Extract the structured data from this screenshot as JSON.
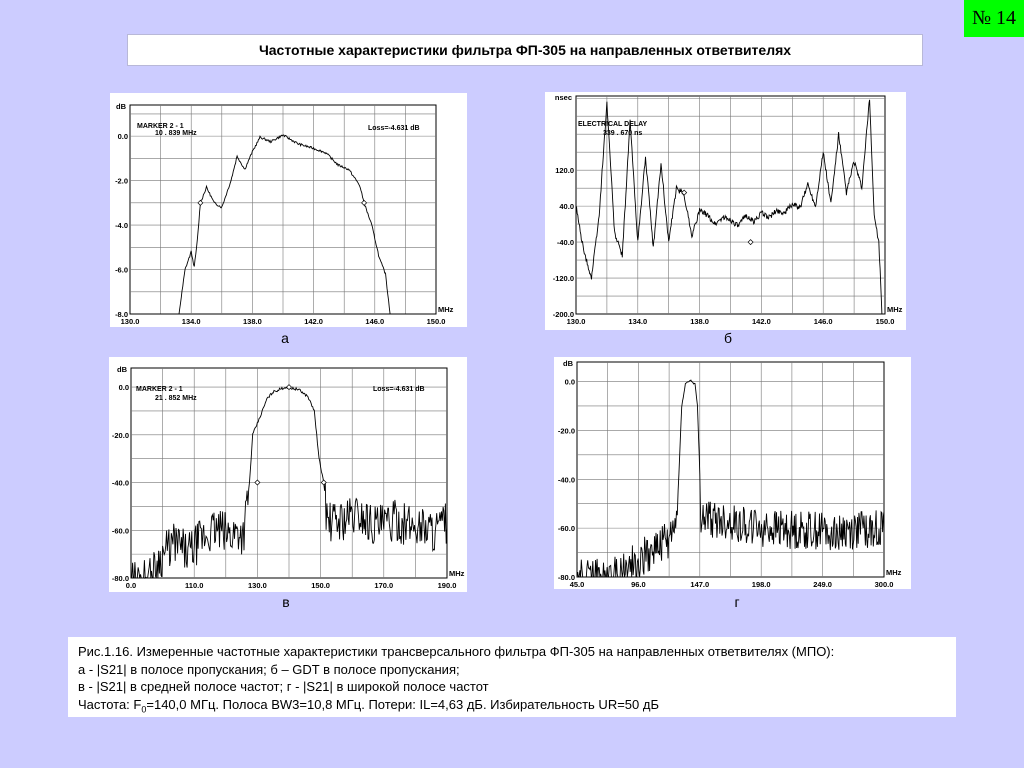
{
  "slide_number": "№ 14",
  "title": "Частотные характеристики фильтра ФП-305 на направленных ответвителях",
  "panel_labels": [
    "а",
    "б",
    "в",
    "г"
  ],
  "caption": {
    "line1": "Рис.1.16. Измеренные частотные характеристики трансверсального фильтра ФП-305 на направленных ответвителях (МПО):",
    "line2": "а - |S21| в полосе пропускания;  б – GDT в полосе пропускания;",
    "line3": "в - |S21| в средней полосе частот;  г - |S21| в широкой полосе частот",
    "line4_prefix": "Частота: F",
    "line4_sub": "0",
    "line4_suffix": "=140,0 МГц. Полоса BW3=10,8 МГц. Потери: IL=4,63 дБ. Избирательность UR=50 дБ"
  },
  "chart_data": [
    {
      "id": "a",
      "type": "line",
      "y_unit": "dB",
      "x_unit": "MHz",
      "xlim": [
        130,
        150
      ],
      "ylim": [
        -8,
        1.4
      ],
      "xticks": [
        "130.0",
        "134.0",
        "138.0",
        "142.0",
        "146.0",
        "150.0"
      ],
      "yticks": [
        "0.0",
        "-2.0",
        "-4.0",
        "-6.0",
        "-8.0"
      ],
      "ytick_values": [
        0,
        -2,
        -4,
        -6,
        -8
      ],
      "grid": true,
      "annotations": [
        "MARKER  2 - 1",
        "10 . 839  MHz",
        "Loss=-4.631 dB"
      ],
      "markers": [
        [
          134.6,
          -3.0
        ],
        [
          145.3,
          -3.0
        ]
      ],
      "points": [
        [
          130,
          -8
        ],
        [
          133.2,
          -8
        ],
        [
          133.6,
          -6
        ],
        [
          134.0,
          -5.2
        ],
        [
          134.2,
          -5.9
        ],
        [
          134.4,
          -4.7
        ],
        [
          134.6,
          -3.0
        ],
        [
          135.0,
          -2.3
        ],
        [
          135.5,
          -3.0
        ],
        [
          136.0,
          -3.2
        ],
        [
          136.6,
          -2.0
        ],
        [
          137.0,
          -0.9
        ],
        [
          137.5,
          -1.5
        ],
        [
          138.0,
          -0.7
        ],
        [
          138.5,
          -0.05
        ],
        [
          139.2,
          -0.25
        ],
        [
          140.0,
          0.05
        ],
        [
          141.0,
          -0.35
        ],
        [
          142.0,
          -0.55
        ],
        [
          142.8,
          -0.75
        ],
        [
          143.6,
          -1.3
        ],
        [
          144.3,
          -1.5
        ],
        [
          145.0,
          -2.2
        ],
        [
          145.3,
          -3.0
        ],
        [
          145.8,
          -4.0
        ],
        [
          146.3,
          -5.5
        ],
        [
          146.7,
          -6.2
        ],
        [
          147.0,
          -8
        ],
        [
          150,
          -8
        ]
      ]
    },
    {
      "id": "b",
      "type": "line",
      "y_unit": "nsec",
      "x_unit": "MHz",
      "xlim": [
        130,
        150
      ],
      "ylim": [
        -200,
        285
      ],
      "xticks": [
        "130.0",
        "134.0",
        "138.0",
        "142.0",
        "146.0",
        "150.0"
      ],
      "yticks": [
        "120.0",
        "40.0",
        "-40.0",
        "-120.0",
        "-200.0"
      ],
      "ytick_values": [
        120,
        40,
        -40,
        -120,
        -200
      ],
      "grid": true,
      "annotations": [
        "ELECTRICAL  DELAY",
        "339 . 670  ns"
      ],
      "markers": [
        [
          137.0,
          70
        ],
        [
          141.3,
          -40
        ]
      ],
      "points": [
        [
          130.0,
          40
        ],
        [
          130.5,
          -60
        ],
        [
          131.0,
          -120
        ],
        [
          131.5,
          20
        ],
        [
          132.0,
          270
        ],
        [
          132.5,
          -20
        ],
        [
          133.0,
          -70
        ],
        [
          133.5,
          230
        ],
        [
          134.0,
          -40
        ],
        [
          134.5,
          150
        ],
        [
          135.0,
          -55
        ],
        [
          135.5,
          135
        ],
        [
          136.0,
          -40
        ],
        [
          136.5,
          80
        ],
        [
          137.0,
          65
        ],
        [
          137.5,
          -25
        ],
        [
          138.0,
          30
        ],
        [
          138.5,
          20
        ],
        [
          139.0,
          0
        ],
        [
          139.5,
          15
        ],
        [
          140.0,
          10
        ],
        [
          140.5,
          -5
        ],
        [
          141.0,
          20
        ],
        [
          141.5,
          5
        ],
        [
          142.0,
          25
        ],
        [
          142.5,
          15
        ],
        [
          143.0,
          30
        ],
        [
          143.5,
          25
        ],
        [
          144.0,
          45
        ],
        [
          144.5,
          35
        ],
        [
          145.0,
          90
        ],
        [
          145.5,
          40
        ],
        [
          146.0,
          160
        ],
        [
          146.5,
          45
        ],
        [
          147.0,
          200
        ],
        [
          147.5,
          70
        ],
        [
          148.0,
          140
        ],
        [
          148.5,
          80
        ],
        [
          149.0,
          280
        ],
        [
          149.3,
          20
        ],
        [
          149.6,
          -40
        ],
        [
          149.8,
          -200
        ]
      ]
    },
    {
      "id": "v",
      "type": "line",
      "y_unit": "dB",
      "x_unit": "MHz",
      "xlim": [
        90,
        190
      ],
      "ylim": [
        -80,
        8
      ],
      "xticks": [
        "0.0",
        "110.0",
        "130.0",
        "150.0",
        "170.0",
        "190.0"
      ],
      "yticks": [
        "0.0",
        "-20.0",
        "-40.0",
        "-60.0",
        "-80.0"
      ],
      "ytick_values": [
        0,
        -20,
        -40,
        -60,
        -80
      ],
      "grid": true,
      "annotations": [
        "MARKER  2 - 1",
        "21 . 852  MHz",
        "Loss=-4.631 dB"
      ],
      "markers": [
        [
          130.0,
          -40
        ],
        [
          140.0,
          0
        ],
        [
          151.0,
          -40
        ]
      ],
      "points": [
        [
          90,
          -80
        ],
        [
          96,
          -80
        ],
        [
          100,
          -70
        ],
        [
          104,
          -65
        ],
        [
          108,
          -70
        ],
        [
          112,
          -64
        ],
        [
          116,
          -60
        ],
        [
          118,
          -60
        ],
        [
          121,
          -62
        ],
        [
          124,
          -60
        ],
        [
          125.5,
          -62
        ],
        [
          126.5,
          -52
        ],
        [
          127.5,
          -40
        ],
        [
          128.5,
          -20
        ],
        [
          131,
          -12
        ],
        [
          133,
          -5
        ],
        [
          135,
          -2
        ],
        [
          139,
          0
        ],
        [
          143,
          -1
        ],
        [
          146,
          -4
        ],
        [
          148,
          -10
        ],
        [
          149.5,
          -30
        ],
        [
          151,
          -40
        ],
        [
          152,
          -55
        ],
        [
          153,
          -57
        ],
        [
          158,
          -55
        ],
        [
          162,
          -53
        ],
        [
          166,
          -57
        ],
        [
          170,
          -58
        ],
        [
          174,
          -56
        ],
        [
          178,
          -58
        ],
        [
          182,
          -58
        ],
        [
          186,
          -60
        ],
        [
          190,
          -57
        ]
      ]
    },
    {
      "id": "g",
      "type": "line",
      "y_unit": "dB",
      "x_unit": "MHz",
      "xlim": [
        45,
        300
      ],
      "ylim": [
        -80,
        8
      ],
      "xticks": [
        "45.0",
        "96.0",
        "147.0",
        "198.0",
        "249.0",
        "300.0"
      ],
      "yticks": [
        "0.0",
        "-20.0",
        "-40.0",
        "-60.0",
        "-80.0"
      ],
      "ytick_values": [
        0,
        -20,
        -40,
        -60,
        -80
      ],
      "grid": true,
      "annotations": [],
      "markers": [],
      "points": [
        [
          45,
          -80
        ],
        [
          70,
          -80
        ],
        [
          85,
          -77
        ],
        [
          100,
          -72
        ],
        [
          110,
          -68
        ],
        [
          120,
          -65
        ],
        [
          127,
          -60
        ],
        [
          129,
          -45
        ],
        [
          132,
          -10
        ],
        [
          135,
          -1
        ],
        [
          139,
          0.5
        ],
        [
          143,
          -1
        ],
        [
          145,
          -10
        ],
        [
          146.5,
          -30
        ],
        [
          148,
          -55
        ],
        [
          152,
          -56
        ],
        [
          160,
          -57
        ],
        [
          175,
          -58
        ],
        [
          200,
          -60
        ],
        [
          225,
          -61
        ],
        [
          250,
          -61
        ],
        [
          275,
          -61
        ],
        [
          300,
          -59
        ]
      ]
    }
  ],
  "chart_boxes": null
}
